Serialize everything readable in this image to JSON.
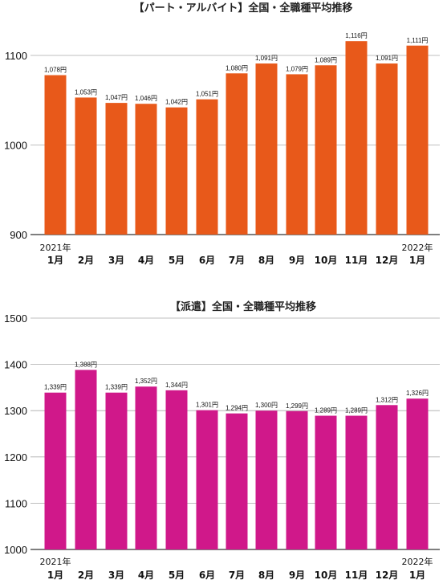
{
  "chart_data": [
    {
      "type": "bar",
      "title": "【パート・アルバイト】全国・全職種平均推移",
      "categories": [
        "1月",
        "2月",
        "3月",
        "4月",
        "5月",
        "6月",
        "7月",
        "8月",
        "9月",
        "10月",
        "11月",
        "12月",
        "1月"
      ],
      "year_labels": [
        "2021年",
        "",
        "",
        "",
        "",
        "",
        "",
        "",
        "",
        "",
        "",
        "",
        "2022年"
      ],
      "values": [
        1078,
        1053,
        1047,
        1046,
        1042,
        1051,
        1080,
        1091,
        1079,
        1089,
        1116,
        1091,
        1111
      ],
      "data_labels": [
        "1,078円",
        "1,053円",
        "1,047円",
        "1,046円",
        "1,042円",
        "1,051円",
        "1,080円",
        "1,091円",
        "1,079円",
        "1,089円",
        "1,116円",
        "1,091円",
        "1,111円"
      ],
      "yticks": [
        900,
        1000,
        1100
      ],
      "ylim": [
        900,
        1135
      ],
      "grid": true,
      "color": "#E8591A"
    },
    {
      "type": "bar",
      "title": "【派遣】全国・全職種平均推移",
      "categories": [
        "1月",
        "2月",
        "3月",
        "4月",
        "5月",
        "6月",
        "7月",
        "8月",
        "9月",
        "10月",
        "11月",
        "12月",
        "1月"
      ],
      "year_labels": [
        "2021年",
        "",
        "",
        "",
        "",
        "",
        "",
        "",
        "",
        "",
        "",
        "",
        "2022年"
      ],
      "values": [
        1339,
        1388,
        1339,
        1352,
        1344,
        1301,
        1294,
        1300,
        1299,
        1289,
        1289,
        1312,
        1326
      ],
      "data_labels": [
        "1,339円",
        "1,388円",
        "1,339円",
        "1,352円",
        "1,344円",
        "1,301円",
        "1,294円",
        "1,300円",
        "1,299円",
        "1,289円",
        "1,289円",
        "1,312円",
        "1,326円"
      ],
      "yticks": [
        1000,
        1100,
        1200,
        1300,
        1400,
        1500
      ],
      "ylim": [
        1000,
        1500
      ],
      "grid": true,
      "color": "#D0188A"
    }
  ]
}
